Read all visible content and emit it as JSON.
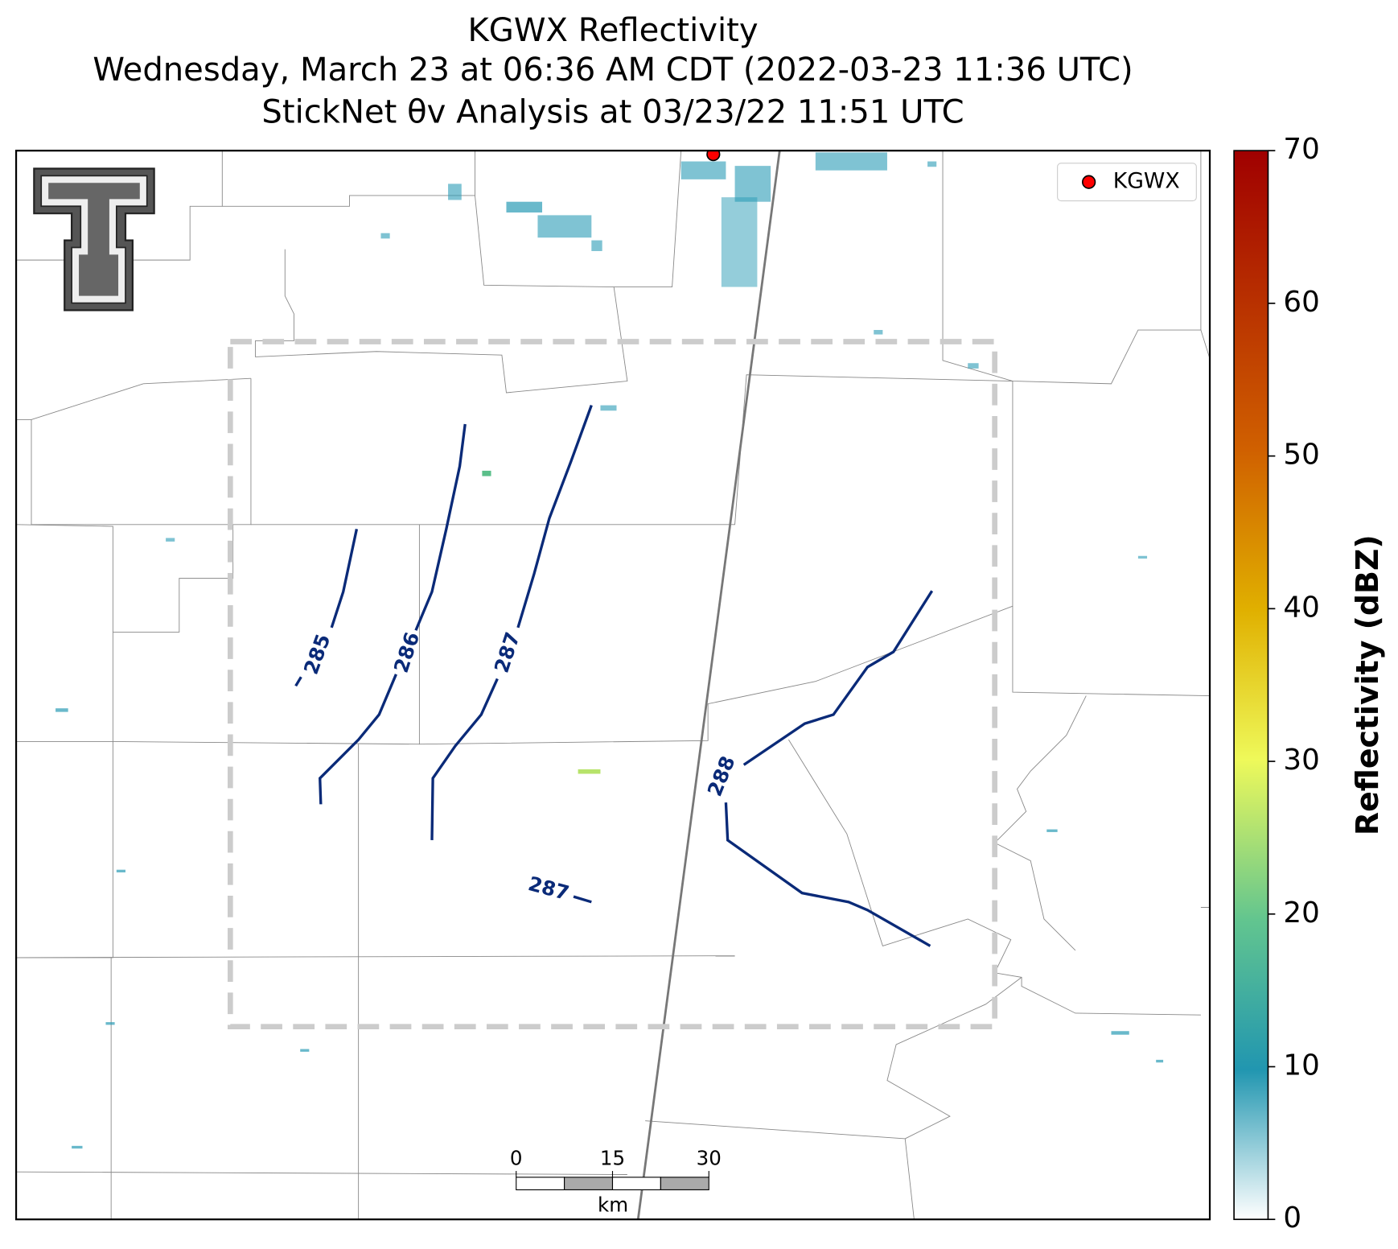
{
  "chart_data": {
    "type": "map",
    "title": [
      "KGWX Reflectivity",
      "Wednesday, March 23 at 06:36 AM CDT (2022-03-23 11:36 UTC)",
      "StickNet θv Analysis at 03/23/22 11:51 UTC"
    ],
    "legend": {
      "name": "KGWX",
      "color": "#ff0000",
      "position": "upper right"
    },
    "contour_levels": [
      285,
      286,
      287,
      288,
      287
    ],
    "contour_color": "#0a2a78",
    "colorbar": {
      "label": "Reflectivity (dBZ)",
      "lim": [
        0,
        70
      ],
      "ticks": [
        0,
        10,
        20,
        30,
        40,
        50,
        60,
        70
      ]
    },
    "scalebar": {
      "ticks": [
        0,
        15,
        30
      ],
      "unit": "km"
    }
  }
}
